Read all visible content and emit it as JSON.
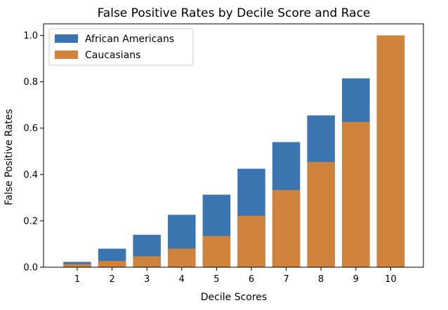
{
  "chart_data": {
    "type": "bar",
    "title": "False Positive Rates by Decile Score and Race",
    "xlabel": "Decile Scores",
    "ylabel": "False Positive Rates",
    "categories": [
      "1",
      "2",
      "3",
      "4",
      "5",
      "6",
      "7",
      "8",
      "9",
      "10"
    ],
    "ylim": [
      0,
      1.05
    ],
    "yticks": [
      "0.0",
      "0.2",
      "0.4",
      "0.6",
      "0.8",
      "1.0"
    ],
    "grid": false,
    "legend_position": "top-left",
    "overlay": true,
    "series": [
      {
        "name": "African Americans",
        "color": "#3a75b0",
        "values": [
          0.023,
          0.08,
          0.14,
          0.226,
          0.313,
          0.425,
          0.54,
          0.655,
          0.815,
          1.0
        ]
      },
      {
        "name": "Caucasians",
        "color": "#d0833c",
        "values": [
          0.013,
          0.027,
          0.047,
          0.08,
          0.135,
          0.222,
          0.333,
          0.454,
          0.627,
          1.0
        ]
      }
    ]
  }
}
